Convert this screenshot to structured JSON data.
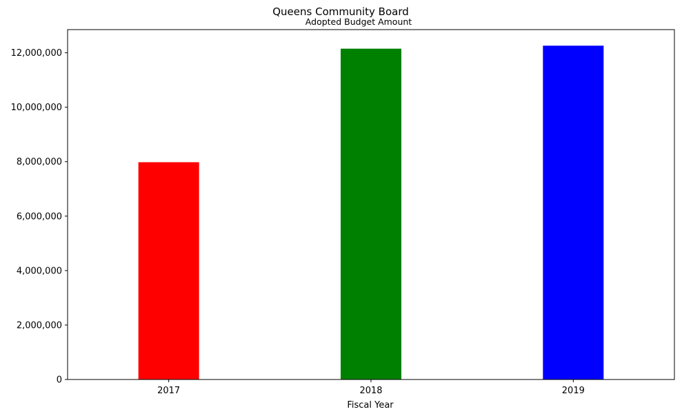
{
  "chart_data": {
    "type": "bar",
    "title": "Queens Community Board",
    "subtitle": "Adopted Budget Amount",
    "xlabel": "Fiscal Year",
    "ylabel": "",
    "categories": [
      "2017",
      "2018",
      "2019"
    ],
    "values": [
      7980000,
      12150000,
      12260000
    ],
    "colors": [
      "#ff0000",
      "#008000",
      "#0000ff"
    ],
    "ylim": [
      0,
      12850000
    ],
    "yticks": [
      0,
      2000000,
      4000000,
      6000000,
      8000000,
      10000000,
      12000000
    ],
    "ytick_labels": [
      "0",
      "2,000,000",
      "4,000,000",
      "6,000,000",
      "8,000,000",
      "10,000,000",
      "12,000,000"
    ],
    "grid": false,
    "legend": "none"
  }
}
